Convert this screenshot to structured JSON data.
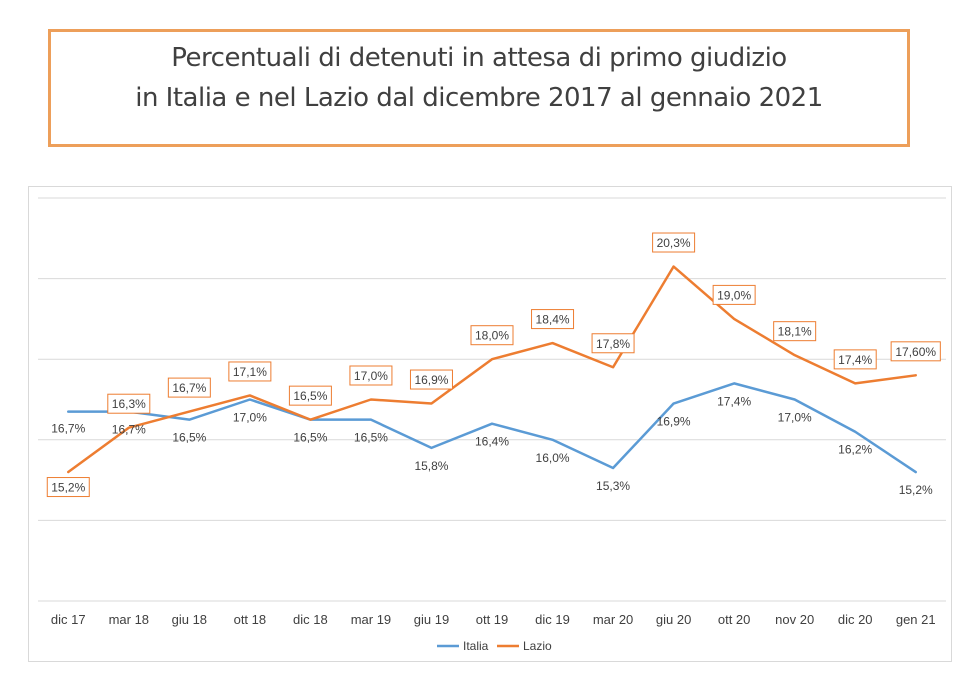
{
  "title": {
    "line1": "Percentuali di detenuti in attesa di primo giudizio",
    "line2": "in Italia e nel Lazio dal dicembre 2017 al gennaio 2021"
  },
  "colors": {
    "italia": "#5b9bd5",
    "lazio": "#ed7d31",
    "grid": "#d9d9d9",
    "text": "#404040",
    "title_border": "#ed9f5a"
  },
  "chart_data": {
    "type": "line",
    "categories": [
      "dic 17",
      "mar 18",
      "giu 18",
      "ott 18",
      "dic 18",
      "mar 19",
      "giu 19",
      "ott 19",
      "dic 19",
      "mar 20",
      "giu 20",
      "ott 20",
      "nov 20",
      "dic 20",
      "gen 21"
    ],
    "ylim": [
      12,
      22
    ],
    "grid": true,
    "legend": "bottom",
    "series": [
      {
        "name": "Italia",
        "values": [
          16.7,
          16.7,
          16.5,
          17.0,
          16.5,
          16.5,
          15.8,
          16.4,
          16.0,
          15.3,
          16.9,
          17.4,
          17.0,
          16.2,
          15.2
        ],
        "labels": [
          "16,7%",
          "16,7%",
          "16,5%",
          "17,0%",
          "16,5%",
          "16,5%",
          "15,8%",
          "16,4%",
          "16,0%",
          "15,3%",
          "16,9%",
          "17,4%",
          "17,0%",
          "16,2%",
          "15,2%"
        ]
      },
      {
        "name": "Lazio",
        "values": [
          15.2,
          16.3,
          16.7,
          17.1,
          16.5,
          17.0,
          16.9,
          18.0,
          18.4,
          17.8,
          20.3,
          19.0,
          18.1,
          17.4,
          17.6
        ],
        "labels": [
          "15,2%",
          "16,3%",
          "16,7%",
          "17,1%",
          "16,5%",
          "17,0%",
          "16,9%",
          "18,0%",
          "18,4%",
          "17,8%",
          "20,3%",
          "19,0%",
          "18,1%",
          "17,4%",
          "17,60%"
        ]
      }
    ]
  }
}
